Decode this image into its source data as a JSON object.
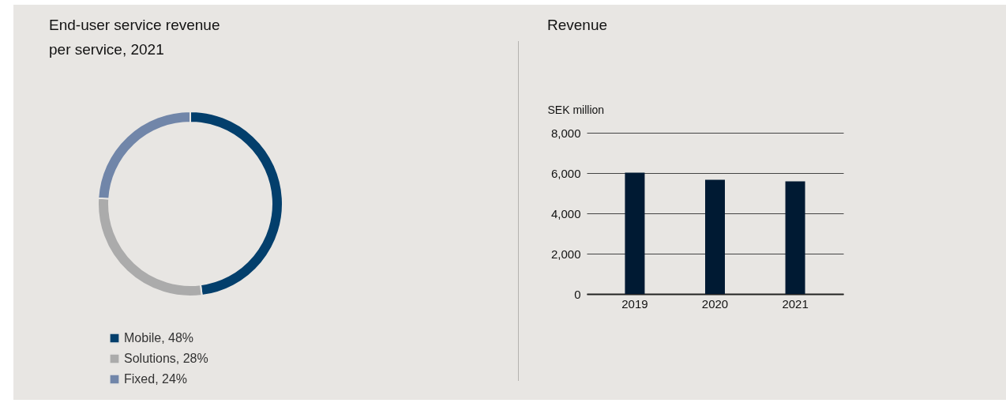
{
  "chart_data": [
    {
      "type": "donut",
      "title": "End-user service revenue per service, 2021",
      "categories": [
        "Mobile, 48%",
        "Solutions, 28%",
        "Fixed, 24%"
      ],
      "values": [
        48,
        28,
        24
      ],
      "colors": [
        "#033f6c",
        "#ababab",
        "#7186a9"
      ],
      "legend": "bottom"
    },
    {
      "type": "bar",
      "title": "Revenue",
      "ylabel": "SEK million",
      "categories": [
        "2019",
        "2020",
        "2021"
      ],
      "values": [
        6020,
        5670,
        5590
      ],
      "color": "#001a33",
      "ylim": [
        0,
        8000
      ],
      "yticks": [
        0,
        {
          "value": 2000,
          "label": "2,000"
        },
        {
          "value": 4000,
          "label": "4,000"
        },
        {
          "value": 6000,
          "label": "6,000"
        },
        {
          "value": 8000,
          "label": "8,000"
        }
      ],
      "grid": "y"
    }
  ]
}
